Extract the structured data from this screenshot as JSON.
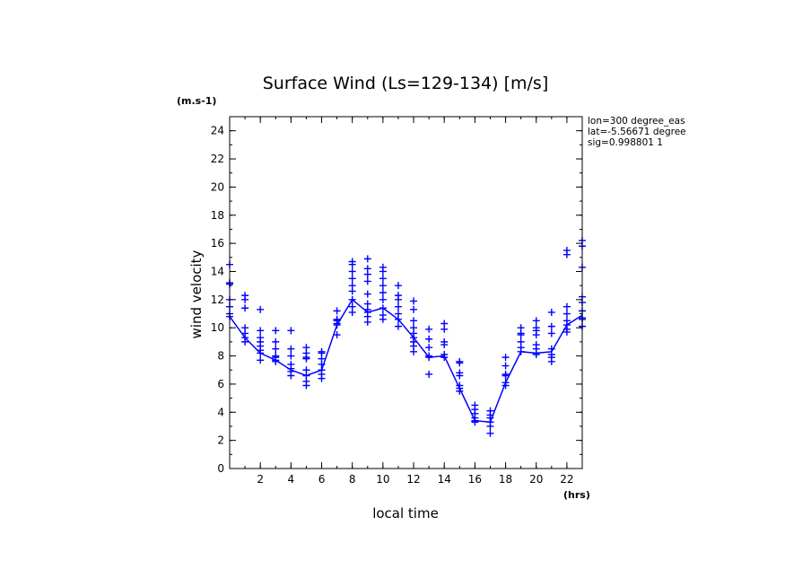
{
  "chart_data": {
    "type": "scatter",
    "title": "Surface Wind  (Ls=129-134) [m/s]",
    "ylabel": "wind velocity",
    "y_unit": "(m.s-1)",
    "xlabel": "local time",
    "x_unit": "(hrs)",
    "info": [
      "lon=300 degree_eas",
      "lat=-5.56671 degree",
      "sig=0.998801 1"
    ],
    "xlim": [
      0,
      23
    ],
    "ylim": [
      0,
      25
    ],
    "x_ticks": [
      2,
      4,
      6,
      8,
      10,
      12,
      14,
      16,
      18,
      20,
      22
    ],
    "y_ticks": [
      0,
      2,
      4,
      6,
      8,
      10,
      12,
      14,
      16,
      18,
      20,
      22,
      24
    ],
    "color": "#0000ff",
    "mean_line": {
      "x": [
        0,
        1,
        2,
        3,
        4,
        5,
        6,
        7,
        8,
        9,
        10,
        11,
        12,
        13,
        14,
        15,
        16,
        17,
        18,
        19,
        20,
        21,
        22,
        23
      ],
      "y": [
        10.8,
        9.3,
        8.2,
        7.7,
        7.0,
        6.6,
        7.0,
        10.2,
        12.0,
        11.1,
        11.4,
        10.6,
        9.3,
        7.9,
        8.0,
        5.7,
        3.4,
        3.3,
        6.1,
        8.3,
        8.2,
        8.3,
        10.2,
        10.9
      ]
    },
    "points": [
      {
        "x": 0,
        "y": [
          14.5,
          13.2,
          13.1,
          12.0,
          11.5,
          11.0,
          10.8
        ]
      },
      {
        "x": 1,
        "y": [
          12.3,
          12.0,
          11.4,
          10.0,
          9.6,
          9.3,
          9.0
        ]
      },
      {
        "x": 2,
        "y": [
          11.3,
          9.8,
          9.3,
          9.0,
          8.7,
          8.4,
          8.2,
          7.7
        ]
      },
      {
        "x": 3,
        "y": [
          9.8,
          9.0,
          8.5,
          8.0,
          7.9,
          7.7,
          7.6
        ]
      },
      {
        "x": 4,
        "y": [
          9.8,
          8.5,
          8.0,
          7.4,
          7.1,
          6.9,
          6.6
        ]
      },
      {
        "x": 5,
        "y": [
          8.6,
          8.2,
          7.9,
          7.8,
          7.0,
          6.6,
          6.2,
          5.9
        ]
      },
      {
        "x": 6,
        "y": [
          8.3,
          8.2,
          7.8,
          7.4,
          7.0,
          6.7,
          6.4
        ]
      },
      {
        "x": 7,
        "y": [
          11.2,
          10.6,
          10.5,
          10.3,
          10.2,
          9.5
        ]
      },
      {
        "x": 8,
        "y": [
          14.7,
          14.5,
          14.0,
          13.5,
          13.0,
          12.6,
          12.0,
          11.5,
          11.1
        ]
      },
      {
        "x": 9,
        "y": [
          14.9,
          14.2,
          13.8,
          13.3,
          12.4,
          11.7,
          11.3,
          11.1,
          10.8,
          10.4
        ]
      },
      {
        "x": 10,
        "y": [
          14.3,
          14.0,
          13.5,
          13.0,
          12.5,
          12.0,
          11.4,
          10.9,
          10.6
        ]
      },
      {
        "x": 11,
        "y": [
          13.0,
          12.3,
          12.0,
          11.5,
          11.0,
          10.6,
          10.1
        ]
      },
      {
        "x": 12,
        "y": [
          11.9,
          11.3,
          10.5,
          10.0,
          9.6,
          9.3,
          9.0,
          8.7,
          8.3
        ]
      },
      {
        "x": 13,
        "y": [
          9.9,
          9.2,
          8.6,
          8.0,
          7.9,
          6.7
        ]
      },
      {
        "x": 14,
        "y": [
          10.3,
          9.9,
          9.0,
          8.8,
          8.1,
          7.9
        ]
      },
      {
        "x": 15,
        "y": [
          7.6,
          7.5,
          6.8,
          6.6,
          5.9,
          5.7,
          5.5
        ]
      },
      {
        "x": 16,
        "y": [
          4.5,
          4.2,
          3.9,
          3.6,
          3.4,
          3.3
        ]
      },
      {
        "x": 17,
        "y": [
          4.1,
          3.8,
          3.6,
          3.3,
          3.0,
          2.5
        ]
      },
      {
        "x": 18,
        "y": [
          7.9,
          7.3,
          6.7,
          6.6,
          6.1,
          5.9
        ]
      },
      {
        "x": 19,
        "y": [
          10.0,
          9.6,
          9.5,
          9.0,
          8.6,
          8.3
        ]
      },
      {
        "x": 20,
        "y": [
          10.5,
          10.0,
          9.8,
          9.5,
          8.8,
          8.5,
          8.2,
          8.1
        ]
      },
      {
        "x": 21,
        "y": [
          11.1,
          10.1,
          9.6,
          8.5,
          8.1,
          7.9,
          7.6
        ]
      },
      {
        "x": 22,
        "y": [
          15.5,
          15.2,
          11.5,
          11.0,
          10.5,
          10.2,
          9.9,
          9.7
        ]
      },
      {
        "x": 23,
        "y": [
          16.2,
          15.8,
          14.3,
          12.2,
          11.8,
          11.2,
          10.7,
          10.6,
          10.1
        ]
      }
    ]
  }
}
